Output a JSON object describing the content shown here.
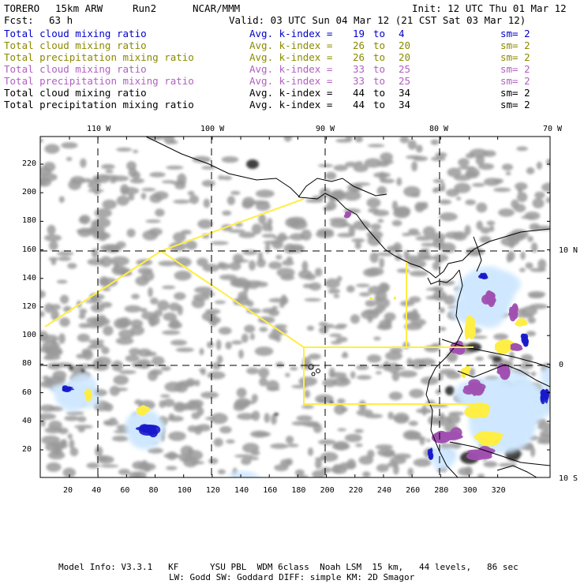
{
  "header": {
    "model": "TORERO",
    "resolution": "15km ARW",
    "run": "Run2",
    "org": "NCAR/MMM",
    "init": "Init: 12 UTC Thu 01 Mar 12",
    "fcst_label": "Fcst:",
    "fcst_value": "63 h",
    "valid": "Valid: 03 UTC Sun 04 Mar 12 (21 CST Sat 03 Mar 12)"
  },
  "legend": [
    {
      "field": "Total cloud mixing ratio",
      "avg": "Avg. k-index =",
      "from": "19",
      "to_word": "to",
      "to": "4",
      "sm": "sm= 2",
      "color": "#0000cc"
    },
    {
      "field": "Total cloud mixing ratio",
      "avg": "Avg. k-index =",
      "from": "26",
      "to_word": "to",
      "to": "20",
      "sm": "sm= 2",
      "color": "#8a8a00"
    },
    {
      "field": "Total precipitation mixing ratio",
      "avg": "Avg. k-index =",
      "from": "26",
      "to_word": "to",
      "to": "20",
      "sm": "sm= 2",
      "color": "#8a8a00"
    },
    {
      "field": "Total cloud mixing ratio",
      "avg": "Avg. k-index =",
      "from": "33",
      "to_word": "to",
      "to": "25",
      "sm": "sm= 2",
      "color": "#b060c0"
    },
    {
      "field": "Total precipitation mixing ratio",
      "avg": "Avg. k-index =",
      "from": "33",
      "to_word": "to",
      "to": "25",
      "sm": "sm= 2",
      "color": "#b060c0"
    },
    {
      "field": "Total cloud mixing ratio",
      "avg": "Avg. k-index =",
      "from": "44",
      "to_word": "to",
      "to": "34",
      "sm": "sm= 2",
      "color": "#000000"
    },
    {
      "field": "Total precipitation mixing ratio",
      "avg": "Avg. k-index =",
      "from": "44",
      "to_word": "to",
      "to": "34",
      "sm": "sm= 2",
      "color": "#000000"
    }
  ],
  "map": {
    "lon_labels": [
      "110 W",
      "100 W",
      "90 W",
      "80 W",
      "70 W"
    ],
    "lat_labels": [
      "10 N",
      "0",
      "10 S"
    ],
    "x_ticks": [
      "20",
      "40",
      "60",
      "80",
      "100",
      "120",
      "140",
      "160",
      "180",
      "200",
      "220",
      "240",
      "260",
      "280",
      "300",
      "320"
    ],
    "y_ticks": [
      "20",
      "40",
      "60",
      "80",
      "100",
      "120",
      "140",
      "160",
      "180",
      "200",
      "220"
    ],
    "colors": {
      "cloud_gray": "#9a9a9a",
      "dark_core": "#404040",
      "light_blue": "#cfe8ff",
      "blue_core": "#1a1acc",
      "yellow": "#ffee44",
      "purple": "#a050b0",
      "boundary_line": "#ffee44"
    }
  },
  "footer": {
    "line1": "Model Info: V3.3.1   KF      YSU PBL  WDM 6class  Noah LSM  15 km,   44 levels,   86 sec",
    "line2": "LW: Godd SW: Goddard DIFF: simple KM: 2D Smagor"
  }
}
